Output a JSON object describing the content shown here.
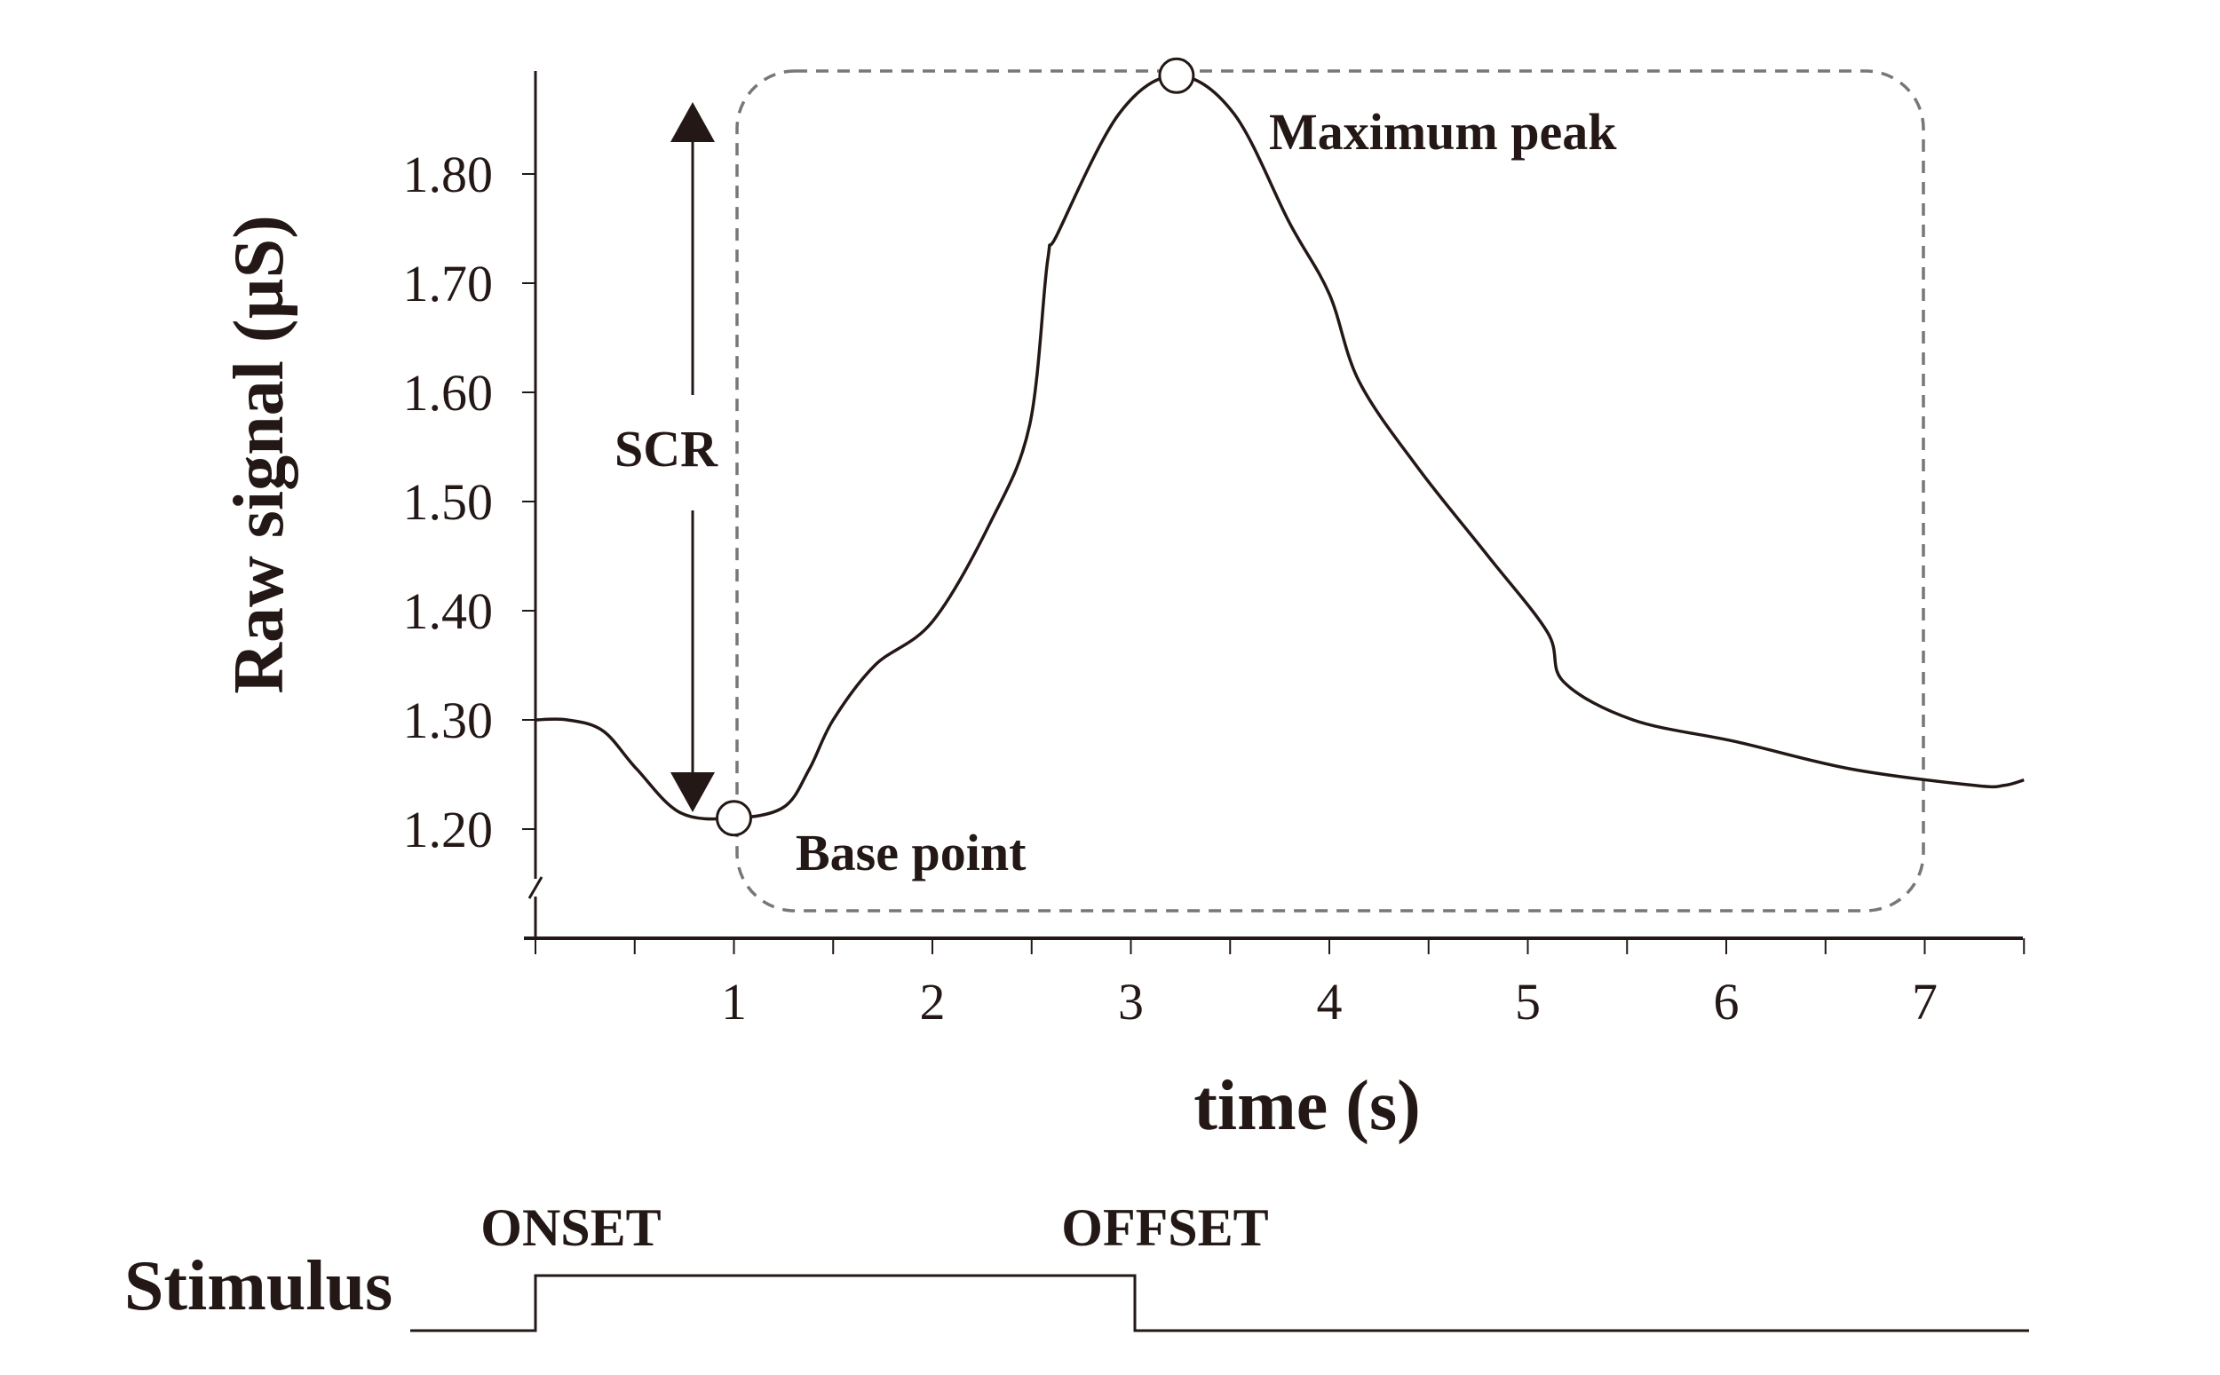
{
  "chart_data": {
    "type": "line",
    "xlabel": "time (s)",
    "ylabel": "Raw signal (µS)",
    "xlim": [
      0,
      7.5
    ],
    "ylim": [
      1.12,
      1.89
    ],
    "x_ticks": [
      "1",
      "2",
      "3",
      "4",
      "5",
      "6",
      "7"
    ],
    "y_ticks": [
      "1.20",
      "1.30",
      "1.40",
      "1.50",
      "1.60",
      "1.70",
      "1.80"
    ],
    "grid": false,
    "series": [
      {
        "x": [
          0,
          0.16,
          0.34,
          0.51,
          0.73,
          1.0,
          1.25,
          1.38,
          1.5,
          1.71,
          2.0,
          2.29,
          2.49,
          2.58,
          2.63,
          2.94,
          3.23,
          3.52,
          3.8,
          4.0,
          4.15,
          4.45,
          4.8,
          5.1,
          5.18,
          5.53,
          6.05,
          6.63,
          7.25,
          7.4,
          7.5
        ],
        "y": [
          1.3,
          1.3,
          1.29,
          1.255,
          1.215,
          1.21,
          1.22,
          1.255,
          1.3,
          1.35,
          1.39,
          1.48,
          1.57,
          1.72,
          1.745,
          1.855,
          1.89,
          1.855,
          1.755,
          1.69,
          1.61,
          1.53,
          1.45,
          1.38,
          1.335,
          1.3,
          1.28,
          1.255,
          1.24,
          1.24,
          1.245
        ]
      }
    ],
    "annotations": {
      "base_point": {
        "label": "Base point",
        "x": 1.0,
        "y": 1.21
      },
      "max_peak": {
        "label": "Maximum peak",
        "x": 3.23,
        "y": 1.89
      },
      "scr": {
        "label": "SCR"
      },
      "response_window": {
        "x_start": 1.0,
        "x_end": 7.0
      }
    },
    "stimulus": {
      "label": "Stimulus",
      "onset_label": "ONSET",
      "offset_label": "OFFSET",
      "onset_time": 0,
      "offset_time": 3
    }
  }
}
